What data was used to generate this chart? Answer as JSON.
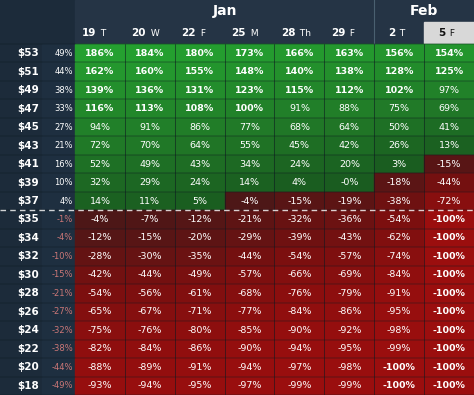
{
  "col_headers": [
    {
      "day": "19",
      "dow": "T"
    },
    {
      "day": "20",
      "dow": "W"
    },
    {
      "day": "22",
      "dow": "F"
    },
    {
      "day": "25",
      "dow": "M"
    },
    {
      "day": "28",
      "dow": "Th"
    },
    {
      "day": "29",
      "dow": "F"
    },
    {
      "day": "2",
      "dow": "T"
    },
    {
      "day": "5",
      "dow": "F"
    }
  ],
  "rows": [
    {
      "price": "$53",
      "pct": "49%",
      "vals": [
        186,
        184,
        180,
        173,
        166,
        163,
        156,
        154
      ]
    },
    {
      "price": "$51",
      "pct": "44%",
      "vals": [
        162,
        160,
        155,
        148,
        140,
        138,
        128,
        125
      ]
    },
    {
      "price": "$49",
      "pct": "38%",
      "vals": [
        139,
        136,
        131,
        123,
        115,
        112,
        102,
        97
      ]
    },
    {
      "price": "$47",
      "pct": "33%",
      "vals": [
        116,
        113,
        108,
        100,
        91,
        88,
        75,
        69
      ]
    },
    {
      "price": "$45",
      "pct": "27%",
      "vals": [
        94,
        91,
        86,
        77,
        68,
        64,
        50,
        41
      ]
    },
    {
      "price": "$43",
      "pct": "21%",
      "vals": [
        72,
        70,
        64,
        55,
        45,
        42,
        26,
        13
      ]
    },
    {
      "price": "$41",
      "pct": "16%",
      "vals": [
        52,
        49,
        43,
        34,
        24,
        20,
        3,
        -15
      ]
    },
    {
      "price": "$39",
      "pct": "10%",
      "vals": [
        32,
        29,
        24,
        14,
        4,
        0,
        -18,
        -44
      ]
    },
    {
      "price": "$37",
      "pct": "4%",
      "vals": [
        14,
        11,
        5,
        -4,
        -15,
        -19,
        -38,
        -72
      ]
    },
    {
      "price": "$35",
      "pct": "-1%",
      "vals": [
        -4,
        -7,
        -12,
        -21,
        -32,
        -36,
        -54,
        -100
      ]
    },
    {
      "price": "$34",
      "pct": "-4%",
      "vals": [
        -12,
        -15,
        -20,
        -29,
        -39,
        -43,
        -62,
        -100
      ]
    },
    {
      "price": "$32",
      "pct": "-10%",
      "vals": [
        -28,
        -30,
        -35,
        -44,
        -54,
        -57,
        -74,
        -100
      ]
    },
    {
      "price": "$30",
      "pct": "-15%",
      "vals": [
        -42,
        -44,
        -49,
        -57,
        -66,
        -69,
        -84,
        -100
      ]
    },
    {
      "price": "$28",
      "pct": "-21%",
      "vals": [
        -54,
        -56,
        -61,
        -68,
        -76,
        -79,
        -91,
        -100
      ]
    },
    {
      "price": "$26",
      "pct": "-27%",
      "vals": [
        -65,
        -67,
        -71,
        -77,
        -84,
        -86,
        -95,
        -100
      ]
    },
    {
      "price": "$24",
      "pct": "-32%",
      "vals": [
        -75,
        -76,
        -80,
        -85,
        -90,
        -92,
        -98,
        -100
      ]
    },
    {
      "price": "$22",
      "pct": "-38%",
      "vals": [
        -82,
        -84,
        -86,
        -90,
        -94,
        -95,
        -99,
        -100
      ]
    },
    {
      "price": "$20",
      "pct": "-44%",
      "vals": [
        -88,
        -89,
        -91,
        -94,
        -97,
        -98,
        -100,
        -100
      ]
    },
    {
      "price": "$18",
      "pct": "-49%",
      "vals": [
        -93,
        -94,
        -95,
        -97,
        -99,
        -99,
        -100,
        -100
      ]
    }
  ],
  "separator_row": 9,
  "bg_color": "#1c2b3a",
  "left_panel_color": "#1c2b3a",
  "pct_panel_color": "#1e2f40",
  "header_color": "#253445",
  "feb_highlight_color": "#d8d8d8",
  "jan_cols": 6,
  "feb_cols": 2,
  "green_low": "#1a5c20",
  "green_mid": "#217a28",
  "green_high": "#25a030",
  "red_low": "#4a1818",
  "red_mid": "#7a1010",
  "red_high": "#9b0e0e"
}
